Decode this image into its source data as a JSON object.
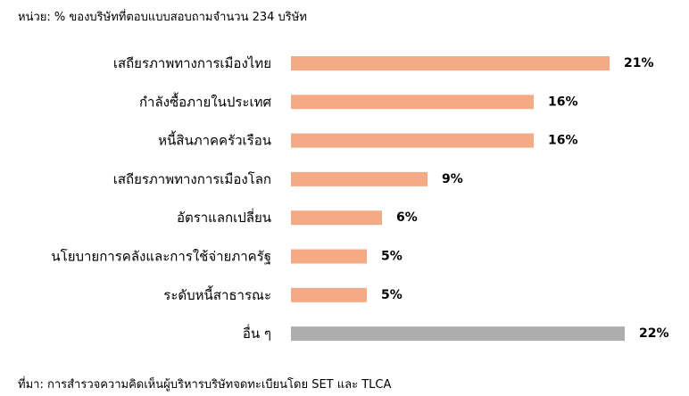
{
  "header": {
    "unit_note": "หน่วย: % ของบริษัทที่ตอบแบบสอบถามจำนวน 234 บริษัท"
  },
  "footer": {
    "source_note": "ที่มา: การสำรวจความคิดเห็นผู้บริหารบริษัทจดทะเบียนโดย SET และ TLCA"
  },
  "chart_data": {
    "type": "bar",
    "orientation": "horizontal",
    "categories": [
      "เสถียรภาพทางการเมืองไทย",
      "กำลังซื้อภายในประเทศ",
      "หนี้สินภาคครัวเรือน",
      "เสถียรภาพทางการเมืองโลก",
      "อัตราแลกเปลี่ยน",
      "นโยบายการคลังและการใช้จ่ายภาครัฐ",
      "ระดับหนี้สาธารณะ",
      "อื่น ๆ"
    ],
    "values": [
      21,
      16,
      16,
      9,
      6,
      5,
      5,
      22
    ],
    "value_labels": [
      "21%",
      "16%",
      "16%",
      "9%",
      "6%",
      "5%",
      "5%",
      "22%"
    ],
    "colors": [
      "#F4AA85",
      "#F4AA85",
      "#F4AA85",
      "#F4AA85",
      "#F4AA85",
      "#F4AA85",
      "#F4AA85",
      "#ADADAD"
    ],
    "xlim": [
      0,
      22
    ],
    "grid": false,
    "legend": "none"
  }
}
